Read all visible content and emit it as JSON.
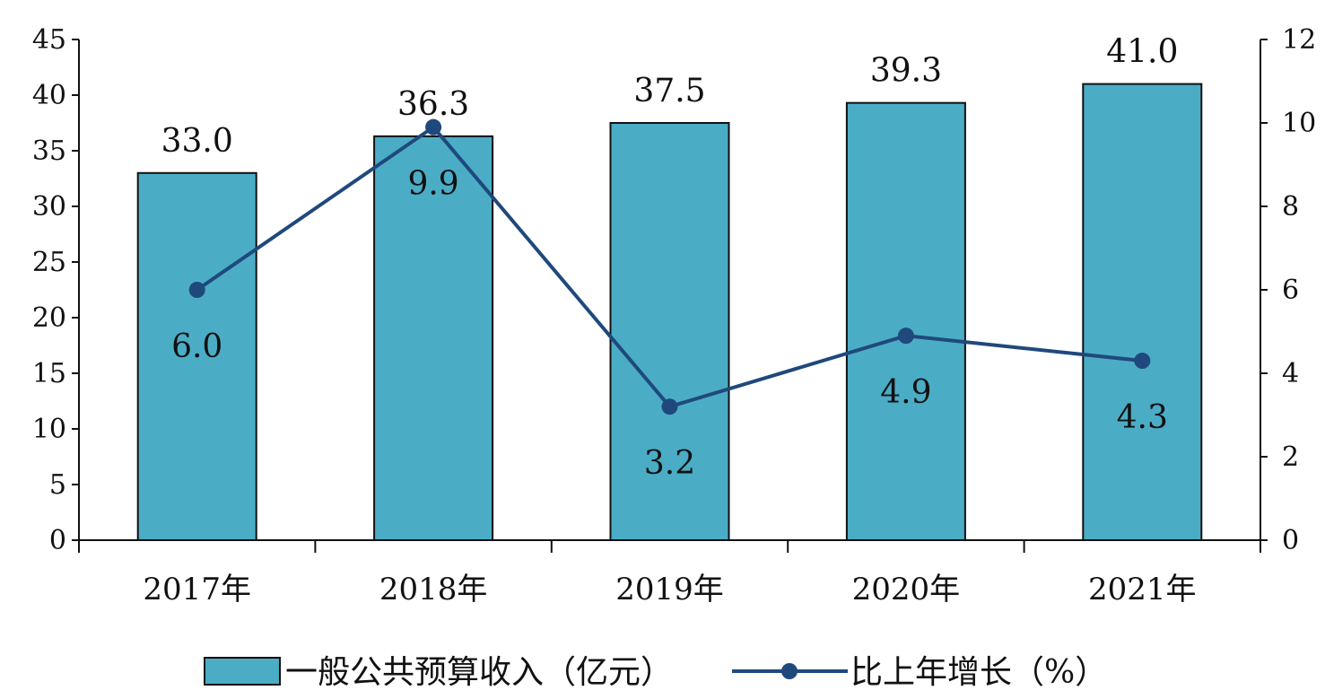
{
  "chart_data": {
    "type": "bar",
    "title": "",
    "categories": [
      "2017年",
      "2018年",
      "2019年",
      "2020年",
      "2021年"
    ],
    "series": [
      {
        "name": "一般公共预算收入（亿元）",
        "type": "bar",
        "axis": "left",
        "values": [
          33.0,
          36.3,
          37.5,
          39.3,
          41.0
        ],
        "labels": [
          "33.0",
          "36.3",
          "37.5",
          "39.3",
          "41.0"
        ],
        "color": "#4bacc6"
      },
      {
        "name": "比上年增长（%）",
        "type": "line",
        "axis": "right",
        "values": [
          6.0,
          9.9,
          3.2,
          4.9,
          4.3
        ],
        "labels": [
          "6.0",
          "9.9",
          "3.2",
          "4.9",
          "4.3"
        ],
        "color": "#1f497d"
      }
    ],
    "y_left": {
      "min": 0,
      "max": 45,
      "ticks": [
        0,
        5,
        10,
        15,
        20,
        25,
        30,
        35,
        40,
        45
      ],
      "tick_labels": [
        "0",
        "5",
        "10",
        "15",
        "20",
        "25",
        "30",
        "35",
        "40",
        "45"
      ]
    },
    "y_right": {
      "min": 0,
      "max": 12,
      "ticks": [
        0,
        2,
        4,
        6,
        8,
        10,
        12
      ],
      "tick_labels": [
        "0",
        "2",
        "4",
        "6",
        "8",
        "10",
        "12"
      ]
    },
    "grid": false,
    "legend": "bottom-center"
  }
}
